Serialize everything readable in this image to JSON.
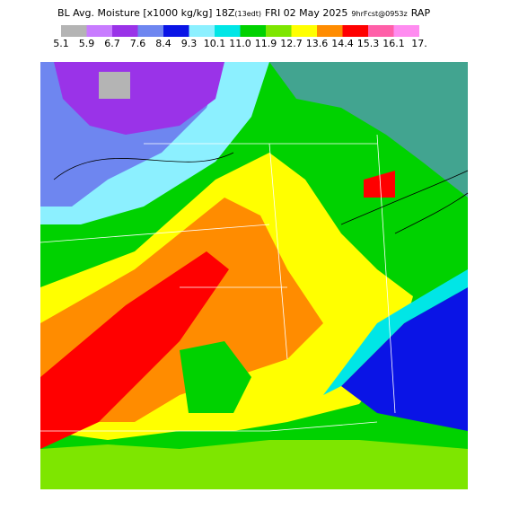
{
  "header": {
    "title": "BL Avg. Moisture [x1000 kg/kg] 18Z",
    "local_time": "(13edt)",
    "date": "FRI 02 May 2025",
    "forecast": "9hrFcst@0953z",
    "model": "RAP"
  },
  "colorbar": {
    "labels": [
      "5.1",
      "5.9",
      "6.7",
      "7.6",
      "8.4",
      "9.3",
      "10.1",
      "11.0",
      "11.9",
      "12.7",
      "13.6",
      "14.4",
      "15.3",
      "16.1",
      "17."
    ],
    "colors": [
      "#b4b4b4",
      "#c87cff",
      "#9a33e8",
      "#6e86f0",
      "#0a14e6",
      "#8cf0ff",
      "#00e6e6",
      "#00d200",
      "#7ee600",
      "#ffff00",
      "#ff8c00",
      "#ff0000",
      "#ff5fa8",
      "#ff8cf0"
    ]
  }
}
